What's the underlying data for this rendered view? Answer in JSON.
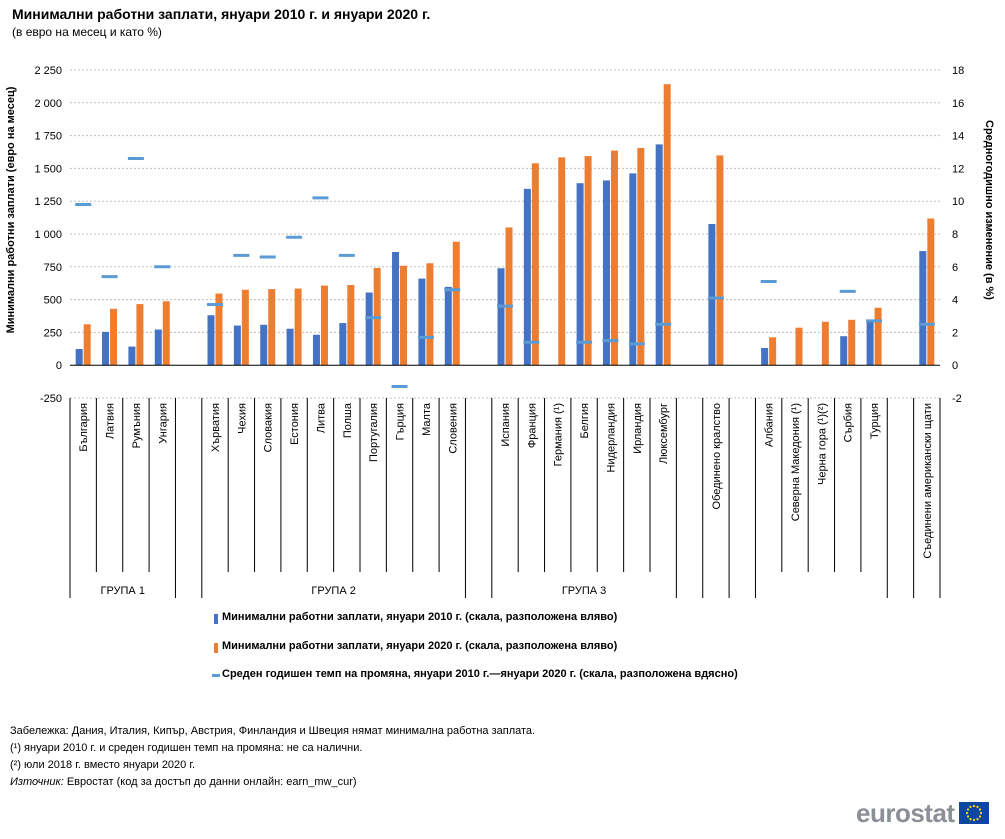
{
  "title": "Минимални работни заплати, януари 2010 г. и януари 2020 г.",
  "subtitle": "(в евро на месец и като %)",
  "chart_data": {
    "type": "bar",
    "title": "Минимални работни заплати, януари 2010 г. и януари 2020 г.",
    "subtitle": "(в евро на месец и като %)",
    "ylabel": "Минимални работни заплати (евро на месец)",
    "y2label": "Средногодишно изменение (в %)",
    "ylim": [
      -250,
      2250
    ],
    "y2lim": [
      -2,
      18
    ],
    "yticks": [
      -250,
      0,
      250,
      500,
      750,
      1000,
      1250,
      1500,
      1750,
      2000,
      2250
    ],
    "ytick_labels": [
      "-250",
      "0",
      "250",
      "500",
      "750",
      "1 000",
      "1 250",
      "1 500",
      "1 750",
      "2 000",
      "2 250"
    ],
    "y2ticks": [
      -2,
      0,
      2,
      4,
      6,
      8,
      10,
      12,
      14,
      16,
      18
    ],
    "y2tick_labels": [
      "-2",
      "0",
      "2",
      "4",
      "6",
      "8",
      "10",
      "12",
      "14",
      "16",
      "18"
    ],
    "grid": true,
    "categories": [
      "България",
      "Латвия",
      "Румъния",
      "Унгария",
      "",
      "Хърватия",
      "Чехия",
      "Словакия",
      "Естония",
      "Литва",
      "Полша",
      "Португалия",
      "Гърция",
      "Малта",
      "Словения",
      "",
      "Испания",
      "Франция",
      "Германия (¹)",
      "Белгия",
      "Нидерландия",
      "Ирландия",
      "Люксембург",
      "",
      "Обединено кралство",
      "",
      "Албания",
      "Северна Македония (¹)",
      "Черна гора (¹)(²)",
      "Сърбия",
      "Турция",
      "",
      "Съединени американски щати"
    ],
    "series": [
      {
        "name": "Минимални работни заплати, януари 2010 г. (скала, разположена вляво)",
        "color": "#4472c4",
        "values": [
          123,
          254,
          142,
          272,
          null,
          381,
          302,
          308,
          278,
          232,
          321,
          554,
          863,
          660,
          597,
          null,
          739,
          1344,
          null,
          1387,
          1408,
          1462,
          1683,
          null,
          1076,
          null,
          131,
          null,
          null,
          221,
          330,
          null,
          870
        ]
      },
      {
        "name": "Минимални работни заплати, януари 2020 г. (скала, разположена вляво)",
        "color": "#ed7d31",
        "values": [
          312,
          430,
          466,
          487,
          null,
          546,
          575,
          580,
          584,
          607,
          611,
          741,
          758,
          777,
          941,
          null,
          1050,
          1539,
          1584,
          1594,
          1636,
          1656,
          2142,
          null,
          1599,
          null,
          213,
          286,
          331,
          346,
          438,
          null,
          1118
        ]
      },
      {
        "name": "Среден годишен темп на промяна, януари 2010 г.—януари 2020 г. (скала, разположена вдясно)",
        "color": "#5b9bd5",
        "type": "marker",
        "values": [
          9.8,
          5.4,
          12.6,
          6.0,
          null,
          3.7,
          6.7,
          6.6,
          7.8,
          10.2,
          6.7,
          2.9,
          -1.3,
          1.7,
          4.6,
          null,
          3.6,
          1.4,
          null,
          1.4,
          1.5,
          1.3,
          2.5,
          null,
          4.1,
          null,
          5.1,
          null,
          null,
          4.5,
          2.7,
          null,
          2.5
        ]
      }
    ],
    "groups": [
      {
        "label": "ГРУПА 1"
      },
      {
        "label": "ГРУПА 2"
      },
      {
        "label": "ГРУПА 3"
      }
    ]
  },
  "legend": {
    "item1": "Минимални работни заплати, януари 2010 г. (скала, разположена вляво)",
    "item2": "Минимални работни заплати, януари 2020 г. (скала, разположена вляво)",
    "item3": "Среден годишен темп на промяна, януари 2010 г.—януари 2020 г. (скала, разположена вдясно)"
  },
  "notes": {
    "note": "Забележка: Дания, Италия, Кипър, Австрия, Финландия и Швеция нямат минимална работна заплата.",
    "footnote1": "(¹) януари 2010 г. и среден годишен темп на промяна: не са налични.",
    "footnote2": "(²) юли 2018 г. вместо януари 2020 г.",
    "source_label": "Източник:",
    "source_text": " Евростат (код за достъп до данни онлайн: earn_mw_cur)"
  },
  "logo": {
    "text": "eurostat"
  },
  "colors": {
    "bar2010": "#4472c4",
    "bar2020": "#ed7d31",
    "marker": "#5b9bd5",
    "grid": "#bfbfbf",
    "flag": "#0e47a1",
    "flag_star": "#ffdd00"
  }
}
